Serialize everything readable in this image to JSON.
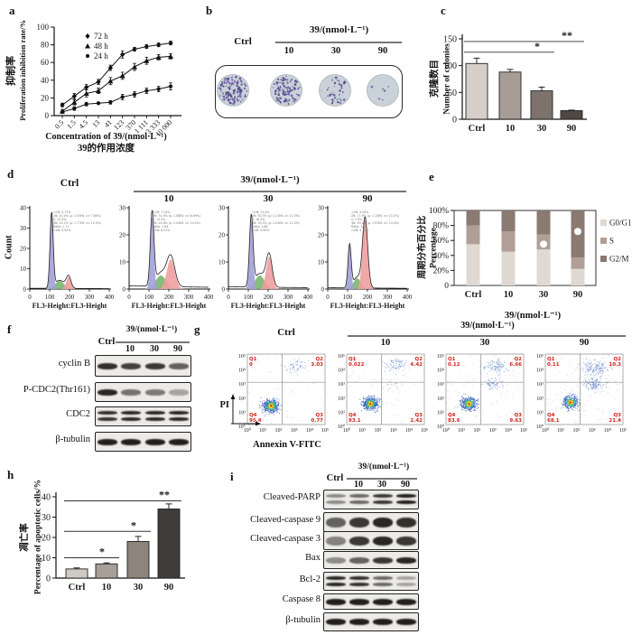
{
  "panels": {
    "a": "a",
    "b": "b",
    "c": "c",
    "d": "d",
    "e": "e",
    "f": "f",
    "g": "g",
    "h": "h",
    "i": "i"
  },
  "strings": {
    "ctrl": "Ctrl",
    "dose_header": "39/(nmol·L⁻¹)"
  },
  "colors": {
    "g1_fill": "#a3a0d8",
    "s_fill": "#79b56e",
    "g2_fill": "#ee9f9f",
    "quadrant_label": "#d02318",
    "dish_bg": "#c9d2d8",
    "colony_dot": "#5b4a96",
    "line_series": "#111111",
    "header_rule": "#777777"
  },
  "panel_a": {
    "ylabel_cn": "抑制率",
    "ylabel_en": "Proliferation inhibition rate/%",
    "xlabel_en": "Concentration of 39/(nmol·L⁻¹)",
    "xlabel_cn": "39的作用浓度"
  },
  "panel_b": {
    "doses": [
      "10",
      "30",
      "90"
    ],
    "dish_labels": [
      "Ctrl",
      "10",
      "30",
      "90"
    ],
    "dish_dot_counts": [
      130,
      105,
      45,
      6
    ]
  },
  "panel_c": {
    "ylabel_cn": "克隆数目",
    "ylabel_en": "Number of colonies"
  },
  "panel_d": {
    "doses": [
      "10",
      "30",
      "90"
    ],
    "ylabel": "Count"
  },
  "panel_e": {
    "ylabel_cn": "周期分布百分比",
    "ylabel_en": "Percentage",
    "xlabel": "39/(nmol·L⁻¹)"
  },
  "panel_f": {
    "doses": [
      "10",
      "30",
      "90"
    ],
    "rows": [
      {
        "protein": "cyclin B",
        "intensities": [
          0.9,
          0.8,
          0.85,
          0.6
        ],
        "style": "normal"
      },
      {
        "protein": "P-CDC2(Thr161)",
        "intensities": [
          0.95,
          0.5,
          0.45,
          0.2
        ],
        "style": "normal"
      },
      {
        "protein": "CDC2",
        "intensities": [
          0.9,
          0.95,
          0.95,
          0.95
        ],
        "style": "double"
      },
      {
        "protein": "β-tubulin",
        "intensities": [
          1,
          1,
          1,
          1
        ],
        "style": "normal"
      }
    ]
  },
  "panel_g": {
    "doses": [
      "10",
      "30",
      "90"
    ],
    "ylabel": "PI",
    "xlabel": "Annexin V-FITC"
  },
  "panel_h": {
    "ylabel_cn": "凋亡率",
    "ylabel_en": "Percentage of  apoptotic cells/%"
  },
  "panel_i": {
    "doses": [
      "10",
      "30",
      "90"
    ],
    "rows": [
      {
        "protein": "Cleaved-PARP",
        "intensities": [
          0.35,
          0.55,
          0.85,
          1
        ],
        "style": "double"
      },
      {
        "protein": "Cleaved-caspase 9",
        "intensities": [
          0.6,
          0.85,
          0.95,
          0.9
        ],
        "style": "thick"
      },
      {
        "protein": "Cleaved-caspase 3",
        "intensities": [
          0.4,
          0.85,
          0.95,
          0.85
        ],
        "style": "thick"
      },
      {
        "protein": "Bax",
        "intensities": [
          0.35,
          0.6,
          0.85,
          0.95
        ],
        "style": "normal"
      },
      {
        "protein": "Bcl-2",
        "intensities": [
          0.95,
          0.9,
          0.55,
          0.2
        ],
        "style": "double"
      },
      {
        "protein": "Caspase 8",
        "intensities": [
          1,
          1,
          1,
          1
        ],
        "style": "normal"
      },
      {
        "protein": "β-tubulin",
        "intensities": [
          1,
          1,
          1,
          1
        ],
        "style": "normal"
      }
    ]
  },
  "chart_data": [
    {
      "id": "a",
      "type": "line",
      "title": "",
      "xlabel": "Concentration of 39/(nmol·L⁻¹)",
      "ylabel": "Proliferation inhibition rate/%",
      "categories": [
        "0.5",
        "1.5",
        "4.5",
        "13",
        "41",
        "123",
        "370",
        "1 111",
        "3 333",
        "10 000"
      ],
      "ylim": [
        0,
        100
      ],
      "yticks": [
        0,
        20,
        40,
        60,
        80,
        100
      ],
      "legend_position": "top-left",
      "grid": false,
      "series": [
        {
          "name": "72 h",
          "marker": "diamond",
          "values": [
            12,
            22,
            32,
            38,
            54,
            69,
            75,
            78,
            80,
            82
          ],
          "errors": [
            2,
            3,
            3,
            3,
            3,
            4,
            2,
            2,
            2,
            2
          ]
        },
        {
          "name": "48 h",
          "marker": "triangle",
          "values": [
            5,
            15,
            25,
            28,
            39,
            45,
            55,
            62,
            66,
            67
          ],
          "errors": [
            2,
            3,
            4,
            3,
            4,
            4,
            4,
            4,
            3,
            3
          ]
        },
        {
          "name": "24 h",
          "marker": "circle",
          "values": [
            4,
            8,
            13,
            14,
            15,
            21,
            24,
            28,
            30,
            33
          ],
          "errors": [
            1,
            2,
            2,
            1,
            2,
            3,
            3,
            3,
            3,
            4
          ]
        }
      ]
    },
    {
      "id": "c",
      "type": "bar",
      "ylabel": "Number of colonies",
      "ylabel_cn": "克隆数目",
      "categories": [
        "Ctrl",
        "10",
        "30",
        "90"
      ],
      "values": [
        104,
        88,
        53,
        16
      ],
      "errors": [
        10,
        5,
        7,
        1
      ],
      "bar_colors": [
        "#d7cec9",
        "#a79d96",
        "#7d736c",
        "#4e4742"
      ],
      "ylim": [
        0,
        150
      ],
      "yticks": [
        0,
        50,
        100,
        150
      ],
      "significance": [
        {
          "from": 0,
          "to": 2,
          "label": "*",
          "y": 125
        },
        {
          "from": 0,
          "to": 3,
          "label": "**",
          "y": 145
        }
      ]
    },
    {
      "id": "d",
      "type": "flow-histogram",
      "xlabel": "FL3-Height:FL3-Height",
      "ylabel": "Count",
      "xticks": [
        0,
        100,
        200,
        300,
        400
      ],
      "xlim": [
        0,
        400
      ],
      "plots": [
        {
          "name": "Ctrl",
          "ymax": 40,
          "stats": [
            "<2N: 0.73%",
            "2N: 45.9% (μ: 1.03E6, cv: 7.80%)",
            "S: 23.4%",
            "4N: 20.1% (μ: 1.77E6, cv: 12.3%)",
            "Ratio: 1.71",
            ">4N: 0.92%"
          ],
          "params": {
            "g1h": 37,
            "g1c": 110,
            "g1w": 8,
            "sh": 4,
            "sc": 150,
            "sw": 22,
            "g2h": 6,
            "g2c": 195,
            "g2w": 12,
            "base": 0.4
          }
        },
        {
          "name": "10",
          "ymax": 30,
          "stats": [
            "<2N: 17.8%",
            "2N: 31.9% (μ: 1.08E6, cv: 8.69%)",
            "S: 13.4%",
            "4N: 24.8% (μ: 2.04E6, cv: 14.2%)",
            "Ratio: 1.84",
            ">4N: 6.01%"
          ],
          "params": {
            "g1h": 27,
            "g1c": 116,
            "g1w": 9,
            "sh": 5,
            "sc": 160,
            "sw": 26,
            "g2h": 11,
            "g2c": 210,
            "g2w": 20,
            "base": 1.2
          }
        },
        {
          "name": "30",
          "ymax": 30,
          "stats": [
            "<2N: 12.4%",
            "2N: 30.3% (μ: 1.21E6, cv: 11.3%)",
            "S: 16.4%",
            "4N: 30.5% (μ: 2.04E6, cv: 12.5%)",
            "Ratio: 1.68",
            ">4N: 4.99%"
          ],
          "params": {
            "g1h": 26,
            "g1c": 115,
            "g1w": 9,
            "sh": 5,
            "sc": 158,
            "sw": 24,
            "g2h": 12,
            "g2c": 205,
            "g2w": 15,
            "base": 0.9
          }
        },
        {
          "name": "90",
          "ymax": 30,
          "stats": [
            "<2N: 3.94%",
            "2N: 17.9% (μ: 1.15E6, cv: 10.2%)",
            "S: 2.9%",
            "4N: 53.4% (μ: 1.91E6, cv: 14.0%)",
            "Ratio: 1.66",
            ">4N: 4.72%"
          ],
          "params": {
            "g1h": 16,
            "g1c": 110,
            "g1w": 8,
            "sh": 4,
            "sc": 148,
            "sw": 18,
            "g2h": 26,
            "g2c": 188,
            "g2w": 13,
            "base": 0.5
          }
        }
      ]
    },
    {
      "id": "e",
      "type": "stacked-bar",
      "ylabel": "Percentage",
      "ylabel_cn": "周期分布百分比",
      "xlabel": "39/(nmol·L⁻¹)",
      "categories": [
        "Ctrl",
        "10",
        "30",
        "90"
      ],
      "yticks": [
        "0",
        "20%",
        "40%",
        "60%",
        "80%",
        "100%"
      ],
      "ylim": [
        0,
        100
      ],
      "series": [
        {
          "name": "G0/G1",
          "color": "#e0d8d2",
          "values": [
            55,
            45,
            48,
            22
          ]
        },
        {
          "name": "S",
          "color": "#b19f97",
          "values": [
            25,
            27,
            20,
            15
          ]
        },
        {
          "name": "G2/M",
          "color": "#8a7a72",
          "values": [
            20,
            28,
            32,
            63
          ]
        }
      ],
      "white_dots": [
        {
          "cat": 2,
          "pct": 55
        },
        {
          "cat": 3,
          "pct": 72
        }
      ],
      "legend_position": "right"
    },
    {
      "id": "g",
      "type": "flow-scatter",
      "xlabel": "Annexin V-FITC",
      "ylabel": "PI",
      "yticks": [
        "10⁵",
        "10⁴",
        "10³",
        "10²",
        "10¹",
        "10⁰"
      ],
      "xticks": [
        "10⁰",
        "10¹",
        "10²",
        "10³",
        "10⁴",
        "10⁵"
      ],
      "plots": [
        {
          "name": "Ctrl",
          "quadrants": {
            "Q1": "0",
            "Q2": "3.03",
            "Q3": "0.77",
            "Q4": "95.4"
          },
          "noise": 45,
          "clusters": [
            {
              "x": 0.3,
              "y": 0.73,
              "sx": 0.05,
              "sy": 0.042,
              "n": 560,
              "core": true
            },
            {
              "x": 0.62,
              "y": 0.16,
              "sx": 0.08,
              "sy": 0.045,
              "n": 65
            }
          ]
        },
        {
          "name": "10",
          "quadrants": {
            "Q1": "0.022",
            "Q2": "4.42",
            "Q3": "2.42",
            "Q4": "93.1"
          },
          "noise": 55,
          "clusters": [
            {
              "x": 0.3,
              "y": 0.7,
              "sx": 0.05,
              "sy": 0.042,
              "n": 540,
              "core": true
            },
            {
              "x": 0.63,
              "y": 0.15,
              "sx": 0.08,
              "sy": 0.045,
              "n": 90
            },
            {
              "x": 0.58,
              "y": 0.44,
              "sx": 0.05,
              "sy": 0.04,
              "n": 15
            }
          ]
        },
        {
          "name": "30",
          "quadrants": {
            "Q1": "0.12",
            "Q2": "6.66",
            "Q3": "9.63",
            "Q4": "83.6"
          },
          "noise": 90,
          "clusters": [
            {
              "x": 0.29,
              "y": 0.7,
              "sx": 0.05,
              "sy": 0.045,
              "n": 470,
              "core": true
            },
            {
              "x": 0.63,
              "y": 0.17,
              "sx": 0.08,
              "sy": 0.05,
              "n": 115
            },
            {
              "x": 0.6,
              "y": 0.42,
              "sx": 0.06,
              "sy": 0.05,
              "n": 70
            }
          ]
        },
        {
          "name": "90",
          "quadrants": {
            "Q1": "0.11",
            "Q2": "10.3",
            "Q3": "21.4",
            "Q4": "68.1"
          },
          "noise": 130,
          "clusters": [
            {
              "x": 0.32,
              "y": 0.68,
              "sx": 0.05,
              "sy": 0.045,
              "n": 400,
              "core": true
            },
            {
              "x": 0.64,
              "y": 0.18,
              "sx": 0.085,
              "sy": 0.055,
              "n": 165
            },
            {
              "x": 0.62,
              "y": 0.42,
              "sx": 0.07,
              "sy": 0.05,
              "n": 140
            }
          ]
        }
      ]
    },
    {
      "id": "h",
      "type": "bar",
      "ylabel": "Percentage of  apoptotic cells/%",
      "ylabel_cn": "凋亡率",
      "categories": [
        "Ctrl",
        "10",
        "30",
        "90"
      ],
      "values": [
        4.5,
        7,
        18,
        34
      ],
      "errors": [
        0.5,
        0.5,
        2.5,
        2.5
      ],
      "bar_colors": [
        "#cfc9c3",
        "#a89f98",
        "#8d847c",
        "#403c39"
      ],
      "ylim": [
        0,
        40
      ],
      "yticks": [
        0,
        10,
        20,
        30,
        40
      ],
      "significance": [
        {
          "from": 0,
          "to": 1,
          "label": "*",
          "y": 10
        },
        {
          "from": 0,
          "to": 2,
          "label": "*",
          "y": 23
        },
        {
          "from": 0,
          "to": 3,
          "label": "**",
          "y": 38
        }
      ]
    }
  ]
}
